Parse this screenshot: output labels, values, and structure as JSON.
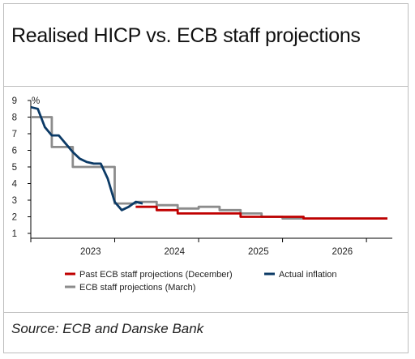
{
  "chart_data": {
    "type": "line",
    "title": "Realised HICP vs. ECB staff projections",
    "ylabel": "%",
    "xlabel": "",
    "ylim": [
      1,
      9
    ],
    "yticks": [
      1,
      2,
      3,
      4,
      5,
      6,
      7,
      8,
      9
    ],
    "xlim": [
      "2022-07",
      "2026-10"
    ],
    "xticks": [
      {
        "label": "2023",
        "date": "2023-01"
      },
      {
        "label": "2024",
        "date": "2024-01"
      },
      {
        "label": "2025",
        "date": "2025-01"
      },
      {
        "label": "2026",
        "date": "2026-01"
      }
    ],
    "grid": false,
    "legend_position": "bottom",
    "series": [
      {
        "name": "Past ECB staff projections (December)",
        "color": "#c00000",
        "step": true,
        "points": [
          [
            "2023-10",
            2.6
          ],
          [
            "2024-01",
            2.6
          ],
          [
            "2024-01",
            2.4
          ],
          [
            "2024-04",
            2.4
          ],
          [
            "2024-04",
            2.2
          ],
          [
            "2025-01",
            2.2
          ],
          [
            "2025-01",
            2.0
          ],
          [
            "2025-10",
            2.0
          ],
          [
            "2025-10",
            1.9
          ],
          [
            "2026-10",
            1.9
          ]
        ]
      },
      {
        "name": "Actual inflation",
        "color": "#0b3a66",
        "step": false,
        "points": [
          [
            "2022-07",
            8.6
          ],
          [
            "2022-08",
            8.5
          ],
          [
            "2022-09",
            7.4
          ],
          [
            "2022-10",
            6.9
          ],
          [
            "2022-11",
            6.9
          ],
          [
            "2022-12",
            6.4
          ],
          [
            "2023-01",
            5.9
          ],
          [
            "2023-02",
            5.5
          ],
          [
            "2023-03",
            5.3
          ],
          [
            "2023-04",
            5.2
          ],
          [
            "2023-05",
            5.2
          ],
          [
            "2023-06",
            4.3
          ],
          [
            "2023-07",
            2.9
          ],
          [
            "2023-08",
            2.4
          ],
          [
            "2023-09",
            2.6
          ],
          [
            "2023-10",
            2.9
          ],
          [
            "2023-11",
            2.8
          ]
        ]
      },
      {
        "name": "ECB staff projections (March)",
        "color": "#8c8c8c",
        "step": true,
        "points": [
          [
            "2022-07",
            8.0
          ],
          [
            "2022-10",
            8.0
          ],
          [
            "2022-10",
            6.2
          ],
          [
            "2023-01",
            6.2
          ],
          [
            "2023-01",
            5.0
          ],
          [
            "2023-04",
            5.0
          ],
          [
            "2023-04",
            5.0
          ],
          [
            "2023-07",
            5.0
          ],
          [
            "2023-07",
            2.8
          ],
          [
            "2023-10",
            2.8
          ],
          [
            "2023-10",
            2.9
          ],
          [
            "2024-01",
            2.9
          ],
          [
            "2024-01",
            2.7
          ],
          [
            "2024-04",
            2.7
          ],
          [
            "2024-04",
            2.5
          ],
          [
            "2024-07",
            2.5
          ],
          [
            "2024-07",
            2.6
          ],
          [
            "2024-10",
            2.6
          ],
          [
            "2024-10",
            2.4
          ],
          [
            "2025-01",
            2.4
          ],
          [
            "2025-01",
            2.2
          ],
          [
            "2025-04",
            2.2
          ],
          [
            "2025-04",
            2.0
          ],
          [
            "2025-07",
            2.0
          ],
          [
            "2025-07",
            1.9
          ],
          [
            "2026-10",
            1.9
          ]
        ]
      }
    ],
    "legend_order": [
      0,
      1,
      2
    ]
  },
  "source": "Source: ECB and Danske Bank"
}
